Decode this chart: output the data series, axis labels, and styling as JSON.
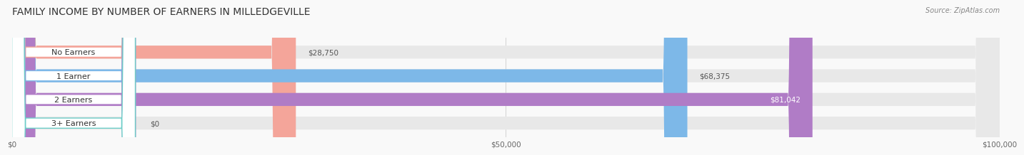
{
  "title": "FAMILY INCOME BY NUMBER OF EARNERS IN MILLEDGEVILLE",
  "source": "Source: ZipAtlas.com",
  "categories": [
    "No Earners",
    "1 Earner",
    "2 Earners",
    "3+ Earners"
  ],
  "values": [
    28750,
    68375,
    81042,
    0
  ],
  "bar_colors": [
    "#F4A59A",
    "#7DB8E8",
    "#B07CC6",
    "#6DCDC8"
  ],
  "bar_bg_color": "#E8E8E8",
  "xlim": [
    0,
    100000
  ],
  "xtick_values": [
    0,
    50000,
    100000
  ],
  "xtick_labels": [
    "$0",
    "$50,000",
    "$100,000"
  ],
  "background_color": "#f9f9f9",
  "bar_height": 0.55,
  "title_fontsize": 10,
  "label_fontsize": 8,
  "value_fontsize": 7.5,
  "source_fontsize": 7
}
